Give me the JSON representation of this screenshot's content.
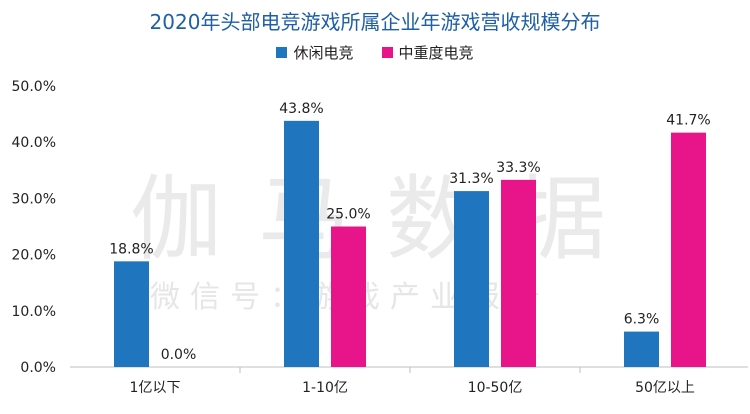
{
  "title": "2020年头部电竞游戏所属企业年游戏营收规模分布",
  "watermark": {
    "main": "伽马数据",
    "sub": "微信号：游戏产业报告"
  },
  "colors": {
    "series1": "#1f75be",
    "series2": "#e8148a",
    "axis": "#bfbfbf",
    "grid": "#e6e6e6",
    "text": "#222222"
  },
  "chart_data": {
    "type": "bar",
    "title": "2020年头部电竞游戏所属企业年游戏营收规模分布",
    "categories": [
      "1亿以下",
      "1-10亿",
      "10-50亿",
      "50亿以上"
    ],
    "series": [
      {
        "name": "休闲电竞",
        "values": [
          18.8,
          43.8,
          31.3,
          6.3
        ],
        "labels": [
          "18.8%",
          "43.8%",
          "31.3%",
          "6.3%"
        ]
      },
      {
        "name": "中重度电竞",
        "values": [
          0.0,
          25.0,
          33.3,
          41.7
        ],
        "labels": [
          "0.0%",
          "25.0%",
          "33.3%",
          "41.7%"
        ]
      }
    ],
    "ylim": [
      0,
      50
    ],
    "yticks": [
      "0.0%",
      "10.0%",
      "20.0%",
      "30.0%",
      "40.0%",
      "50.0%"
    ],
    "xlabel": "",
    "ylabel": "",
    "grid": false,
    "legend": "top-center"
  }
}
